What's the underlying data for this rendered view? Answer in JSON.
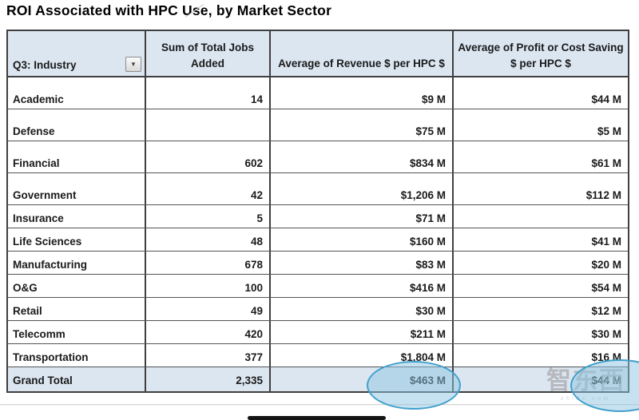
{
  "title": "ROI Associated with HPC Use, by Market Sector",
  "chart_data": {
    "type": "table",
    "title": "ROI Associated with HPC Use, by Market Sector",
    "columns": [
      "Q3: Industry",
      "Sum of Total Jobs Added",
      "Average of Revenue $ per HPC $",
      "Average of Profit or Cost Saving $ per HPC $"
    ],
    "rows": [
      [
        "Academic",
        "14",
        "$9 M",
        "$44 M"
      ],
      [
        "Defense",
        "",
        "$75 M",
        "$5 M"
      ],
      [
        "Financial",
        "602",
        "$834 M",
        "$61 M"
      ],
      [
        "Government",
        "42",
        "$1,206 M",
        "$112 M"
      ],
      [
        "Insurance",
        "5",
        "$71 M",
        ""
      ],
      [
        "Life Sciences",
        "48",
        "$160 M",
        "$41 M"
      ],
      [
        "Manufacturing",
        "678",
        "$83 M",
        "$20 M"
      ],
      [
        "O&G",
        "100",
        "$416 M",
        "$54 M"
      ],
      [
        "Retail",
        "49",
        "$30 M",
        "$12 M"
      ],
      [
        "Telecomm",
        "420",
        "$211 M",
        "$30 M"
      ],
      [
        "Transportation",
        "377",
        "$1,804 M",
        "$16 M"
      ]
    ],
    "grand_total": [
      "Grand Total",
      "2,335",
      "$463 M",
      "$44 M"
    ],
    "highlighted_values": [
      "$463 M",
      "$44 M"
    ]
  },
  "filter": {
    "dropdown_icon": "▼"
  },
  "watermark": {
    "logo_text": "智东西",
    "site_text": "zhidx.com"
  },
  "colors": {
    "header_fill": "#dce6f1",
    "total_fill": "#dce6f1",
    "table_border": "#3f3f3f",
    "highlight_stroke": "#42a0cc",
    "highlight_fill": "#8dc5e2"
  }
}
